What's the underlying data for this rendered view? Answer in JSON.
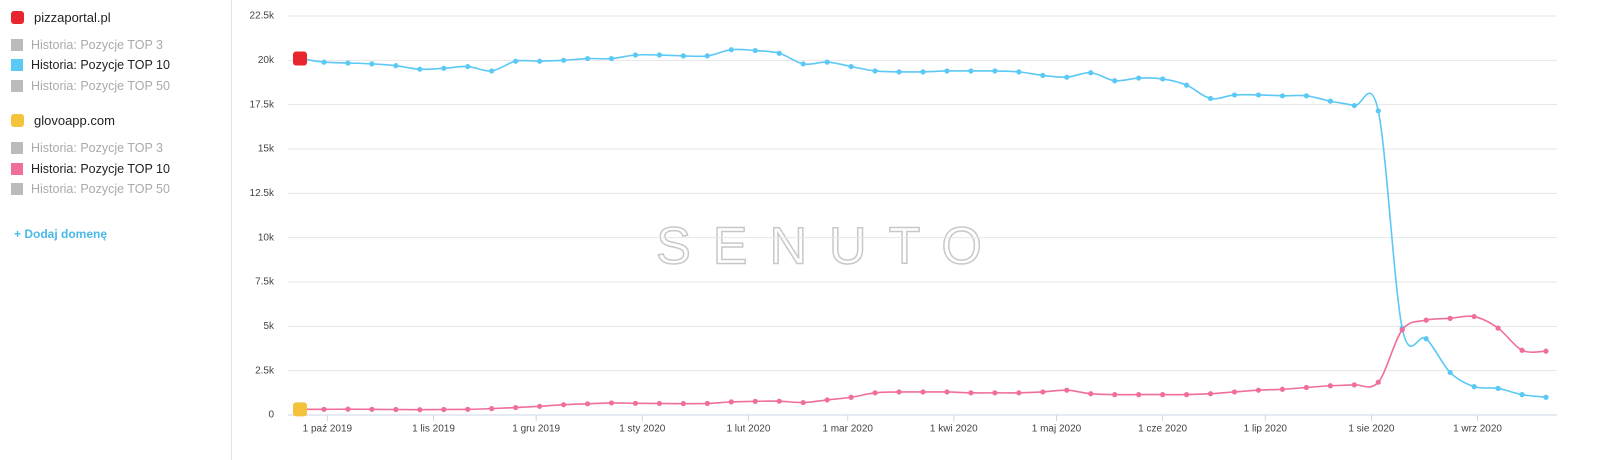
{
  "chart_data": {
    "type": "line",
    "x": [
      "2019-09-23",
      "2019-09-30",
      "2019-10-07",
      "2019-10-14",
      "2019-10-21",
      "2019-10-28",
      "2019-11-04",
      "2019-11-11",
      "2019-11-18",
      "2019-11-25",
      "2019-12-02",
      "2019-12-09",
      "2019-12-16",
      "2019-12-23",
      "2019-12-30",
      "2020-01-06",
      "2020-01-13",
      "2020-01-20",
      "2020-01-27",
      "2020-02-03",
      "2020-02-10",
      "2020-02-17",
      "2020-02-24",
      "2020-03-02",
      "2020-03-09",
      "2020-03-16",
      "2020-03-23",
      "2020-03-30",
      "2020-04-06",
      "2020-04-13",
      "2020-04-20",
      "2020-04-27",
      "2020-05-04",
      "2020-05-11",
      "2020-05-18",
      "2020-05-25",
      "2020-06-01",
      "2020-06-08",
      "2020-06-15",
      "2020-06-22",
      "2020-06-29",
      "2020-07-06",
      "2020-07-13",
      "2020-07-20",
      "2020-07-27",
      "2020-08-03",
      "2020-08-10",
      "2020-08-17",
      "2020-08-24",
      "2020-08-31",
      "2020-09-07",
      "2020-09-14",
      "2020-09-21"
    ],
    "xlim": [
      "2019-09-23",
      "2020-09-21"
    ],
    "xticks": [
      {
        "value": "2019-10-01",
        "label": "1 paź 2019"
      },
      {
        "value": "2019-11-01",
        "label": "1 lis 2019"
      },
      {
        "value": "2019-12-01",
        "label": "1 gru 2019"
      },
      {
        "value": "2020-01-01",
        "label": "1 sty 2020"
      },
      {
        "value": "2020-02-01",
        "label": "1 lut 2020"
      },
      {
        "value": "2020-03-01",
        "label": "1 mar 2020"
      },
      {
        "value": "2020-04-01",
        "label": "1 kwi 2020"
      },
      {
        "value": "2020-05-01",
        "label": "1 maj 2020"
      },
      {
        "value": "2020-06-01",
        "label": "1 cze 2020"
      },
      {
        "value": "2020-07-01",
        "label": "1 lip 2020"
      },
      {
        "value": "2020-08-01",
        "label": "1 sie 2020"
      },
      {
        "value": "2020-09-01",
        "label": "1 wrz 2020"
      }
    ],
    "ylim": [
      0,
      22500
    ],
    "yticks": [
      0,
      {
        "value": 2500,
        "label": "2.5k"
      },
      {
        "value": 5000,
        "label": "5k"
      },
      {
        "value": 7500,
        "label": "7.5k"
      },
      {
        "value": 10000,
        "label": "10k"
      },
      {
        "value": 12500,
        "label": "12.5k"
      },
      {
        "value": 15000,
        "label": "15k"
      },
      {
        "value": 17500,
        "label": "17.5k"
      },
      {
        "value": 20000,
        "label": "20k"
      },
      {
        "value": 22500,
        "label": "22.5k"
      }
    ],
    "grid": true,
    "watermark": "SENUTO",
    "inactive_metrics": [
      "Historia: Pozycje TOP 3",
      "Historia: Pozycje TOP 50"
    ],
    "add_domain": "+ Dodaj domenę",
    "series": [
      {
        "domain": "pizzaportal.pl",
        "name": "Historia: Pozycje TOP 10",
        "color": "#5bc8f5",
        "icon_color": "#e8262d",
        "values": [
          20100,
          19900,
          19850,
          19800,
          19700,
          19500,
          19550,
          19650,
          19400,
          19950,
          19950,
          20000,
          20100,
          20100,
          20300,
          20300,
          20250,
          20250,
          20600,
          20550,
          20400,
          19800,
          19900,
          19650,
          19400,
          19350,
          19350,
          19400,
          19400,
          19400,
          19350,
          19150,
          19050,
          19300,
          18850,
          19000,
          18950,
          18600,
          17850,
          18050,
          18050,
          18000,
          18000,
          17700,
          17450,
          17150,
          4900,
          4300,
          2400,
          1600,
          1500,
          1150,
          1000
        ]
      },
      {
        "domain": "glovoapp.com",
        "name": "Historia: Pozycje TOP 10",
        "color": "#f06f9a",
        "icon_color": "#f5c33b",
        "values": [
          320,
          320,
          330,
          320,
          310,
          300,
          310,
          320,
          360,
          420,
          490,
          580,
          630,
          680,
          660,
          650,
          640,
          650,
          740,
          770,
          780,
          700,
          850,
          1000,
          1250,
          1300,
          1300,
          1300,
          1250,
          1250,
          1250,
          1300,
          1400,
          1200,
          1150,
          1150,
          1150,
          1150,
          1200,
          1300,
          1400,
          1450,
          1550,
          1650,
          1700,
          1850,
          4800,
          5350,
          5450,
          5550,
          4900,
          3650,
          3600
        ]
      }
    ]
  }
}
